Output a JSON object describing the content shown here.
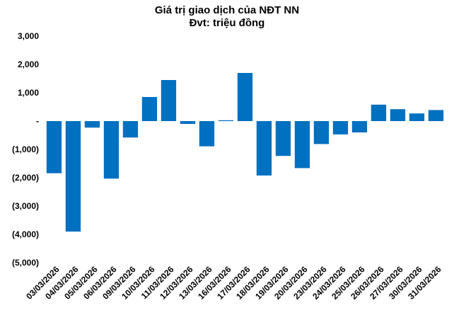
{
  "chart_data": {
    "type": "bar",
    "title": "Giá trị giao dịch của NĐT NN",
    "subtitle": "Đvt: triệu đồng",
    "xlabel": "",
    "ylabel": "",
    "ylim": [
      -5000,
      3000
    ],
    "yticks": [
      3000,
      2000,
      1000,
      0,
      -1000,
      -2000,
      -3000,
      -4000,
      -5000
    ],
    "ytick_labels": [
      "3,000",
      "2,000",
      "1,000",
      "-",
      "(1,000)",
      "(2,000)",
      "(3,000)",
      "(4,000)",
      "(5,000)"
    ],
    "grid": false,
    "legend": "none",
    "bar_color": "#0070C0",
    "categories": [
      "03/03/2026",
      "04/03/2026",
      "05/03/2026",
      "06/03/2026",
      "09/03/2026",
      "10/03/2026",
      "11/03/2026",
      "12/03/2026",
      "13/03/2026",
      "16/03/2026",
      "17/03/2026",
      "18/03/2026",
      "19/03/2026",
      "20/03/2026",
      "23/03/2026",
      "24/03/2026",
      "25/03/2026",
      "26/03/2026",
      "27/03/2026",
      "30/03/2026",
      "31/03/2026"
    ],
    "values": [
      -1840,
      -3900,
      -230,
      -2030,
      -580,
      850,
      1450,
      -100,
      -890,
      30,
      1700,
      -1920,
      -1230,
      -1660,
      -810,
      -470,
      -400,
      580,
      420,
      270,
      390
    ]
  }
}
